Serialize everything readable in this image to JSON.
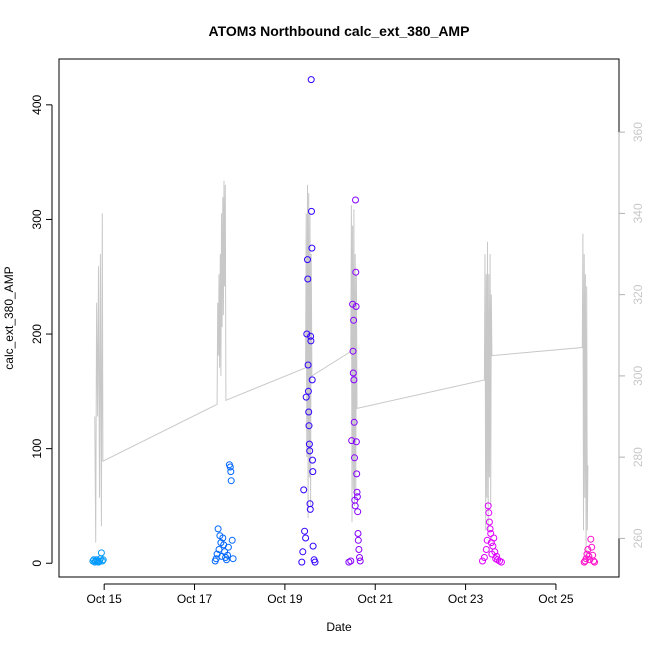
{
  "chart_data": {
    "type": "scatter",
    "title": "ATOM3 Northbound calc_ext_380_AMP",
    "xlabel": "Date",
    "ylabel": "calc_ext_380_AMP",
    "xlim": [
      "2023-10-14 00:00",
      "2023-10-26 09:30"
    ],
    "ylim": [
      -12,
      440
    ],
    "y2lim": [
      250.5,
      378
    ],
    "x_ticks": [
      {
        "date": "2023-10-15 00:00",
        "label": "Oct 15"
      },
      {
        "date": "2023-10-17 00:00",
        "label": "Oct 17"
      },
      {
        "date": "2023-10-19 00:00",
        "label": "Oct 19"
      },
      {
        "date": "2023-10-21 00:00",
        "label": "Oct 21"
      },
      {
        "date": "2023-10-23 00:00",
        "label": "Oct 23"
      },
      {
        "date": "2023-10-25 00:00",
        "label": "Oct 25"
      }
    ],
    "y_ticks": [
      0,
      100,
      200,
      300,
      400
    ],
    "y2_ticks": [
      260,
      280,
      300,
      320,
      340,
      360
    ],
    "colors": {
      "line": "#c8c8c8",
      "right_axis": "#c8c8c8",
      "series": [
        "#0099ff",
        "#0066ff",
        "#3300ff",
        "#8800ff",
        "#dd00ff",
        "#ff11cc"
      ]
    },
    "series": [
      {
        "day": "2023-10-14",
        "points": [
          [
            "2023-10-14 18:00",
            2
          ],
          [
            "2023-10-14 18:30",
            3
          ],
          [
            "2023-10-14 19:00",
            1
          ],
          [
            "2023-10-14 19:30",
            2
          ],
          [
            "2023-10-14 20:00",
            3
          ],
          [
            "2023-10-14 20:30",
            2
          ],
          [
            "2023-10-14 21:00",
            1
          ],
          [
            "2023-10-14 21:30",
            2
          ],
          [
            "2023-10-14 22:00",
            4
          ],
          [
            "2023-10-14 22:30",
            9
          ],
          [
            "2023-10-14 23:00",
            2
          ],
          [
            "2023-10-14 23:30",
            3
          ]
        ]
      },
      {
        "day": "2023-10-17",
        "points": [
          [
            "2023-10-17 11:00",
            2
          ],
          [
            "2023-10-17 11:30",
            4
          ],
          [
            "2023-10-17 12:00",
            8
          ],
          [
            "2023-10-17 12:30",
            30
          ],
          [
            "2023-10-17 13:00",
            12
          ],
          [
            "2023-10-17 13:30",
            24
          ],
          [
            "2023-10-17 14:00",
            18
          ],
          [
            "2023-10-17 14:30",
            6
          ],
          [
            "2023-10-17 15:00",
            22
          ],
          [
            "2023-10-17 15:30",
            16
          ],
          [
            "2023-10-17 16:00",
            10
          ],
          [
            "2023-10-17 16:30",
            5
          ],
          [
            "2023-10-17 17:00",
            3
          ],
          [
            "2023-10-17 17:30",
            7
          ],
          [
            "2023-10-17 18:00",
            14
          ],
          [
            "2023-10-17 18:30",
            86
          ],
          [
            "2023-10-17 19:00",
            84
          ],
          [
            "2023-10-17 19:15",
            80
          ],
          [
            "2023-10-17 19:30",
            72
          ],
          [
            "2023-10-17 20:00",
            20
          ],
          [
            "2023-10-17 20:30",
            4
          ]
        ]
      },
      {
        "day": "2023-10-19",
        "points": [
          [
            "2023-10-19 09:00",
            1
          ],
          [
            "2023-10-19 09:30",
            10
          ],
          [
            "2023-10-19 10:00",
            64
          ],
          [
            "2023-10-19 10:30",
            28
          ],
          [
            "2023-10-19 11:00",
            22
          ],
          [
            "2023-10-19 11:20",
            145
          ],
          [
            "2023-10-19 11:40",
            200
          ],
          [
            "2023-10-19 12:00",
            265
          ],
          [
            "2023-10-19 12:10",
            248
          ],
          [
            "2023-10-19 12:20",
            173
          ],
          [
            "2023-10-19 12:30",
            150
          ],
          [
            "2023-10-19 12:40",
            132
          ],
          [
            "2023-10-19 12:50",
            120
          ],
          [
            "2023-10-19 13:00",
            104
          ],
          [
            "2023-10-19 13:10",
            98
          ],
          [
            "2023-10-19 13:20",
            52
          ],
          [
            "2023-10-19 13:30",
            47
          ],
          [
            "2023-10-19 13:40",
            198
          ],
          [
            "2023-10-19 13:50",
            194
          ],
          [
            "2023-10-19 14:00",
            422
          ],
          [
            "2023-10-19 14:10",
            307
          ],
          [
            "2023-10-19 14:20",
            275
          ],
          [
            "2023-10-19 14:30",
            160
          ],
          [
            "2023-10-19 14:40",
            90
          ],
          [
            "2023-10-19 14:50",
            80
          ],
          [
            "2023-10-19 15:00",
            15
          ],
          [
            "2023-10-19 15:30",
            3
          ],
          [
            "2023-10-19 16:00",
            1
          ]
        ]
      },
      {
        "day": "2023-10-20",
        "points": [
          [
            "2023-10-20 10:00",
            1
          ],
          [
            "2023-10-20 11:00",
            2
          ],
          [
            "2023-10-20 11:30",
            107
          ],
          [
            "2023-10-20 12:00",
            226
          ],
          [
            "2023-10-20 12:10",
            185
          ],
          [
            "2023-10-20 12:20",
            166
          ],
          [
            "2023-10-20 12:30",
            212
          ],
          [
            "2023-10-20 12:40",
            160
          ],
          [
            "2023-10-20 12:50",
            123
          ],
          [
            "2023-10-20 13:00",
            92
          ],
          [
            "2023-10-20 13:10",
            55
          ],
          [
            "2023-10-20 13:20",
            50
          ],
          [
            "2023-10-20 13:30",
            317
          ],
          [
            "2023-10-20 13:40",
            254
          ],
          [
            "2023-10-20 13:50",
            224
          ],
          [
            "2023-10-20 14:00",
            106
          ],
          [
            "2023-10-20 14:10",
            78
          ],
          [
            "2023-10-20 14:20",
            62
          ],
          [
            "2023-10-20 14:30",
            58
          ],
          [
            "2023-10-20 14:40",
            45
          ],
          [
            "2023-10-20 14:50",
            26
          ],
          [
            "2023-10-20 15:00",
            20
          ],
          [
            "2023-10-20 15:20",
            12
          ],
          [
            "2023-10-20 15:40",
            5
          ],
          [
            "2023-10-20 16:00",
            2
          ]
        ]
      },
      {
        "day": "2023-10-23",
        "points": [
          [
            "2023-10-23 09:00",
            2
          ],
          [
            "2023-10-23 10:00",
            5
          ],
          [
            "2023-10-23 11:00",
            12
          ],
          [
            "2023-10-23 11:30",
            20
          ],
          [
            "2023-10-23 12:00",
            50
          ],
          [
            "2023-10-23 12:20",
            44
          ],
          [
            "2023-10-23 12:40",
            36
          ],
          [
            "2023-10-23 13:00",
            30
          ],
          [
            "2023-10-23 13:20",
            26
          ],
          [
            "2023-10-23 13:40",
            18
          ],
          [
            "2023-10-23 14:00",
            8
          ],
          [
            "2023-10-23 14:30",
            15
          ],
          [
            "2023-10-23 15:00",
            22
          ],
          [
            "2023-10-23 15:30",
            10
          ],
          [
            "2023-10-23 16:00",
            4
          ],
          [
            "2023-10-23 16:30",
            6
          ],
          [
            "2023-10-23 17:00",
            3
          ],
          [
            "2023-10-23 18:00",
            2
          ],
          [
            "2023-10-23 19:00",
            1
          ]
        ]
      },
      {
        "day": "2023-10-25",
        "points": [
          [
            "2023-10-25 15:00",
            1
          ],
          [
            "2023-10-25 15:30",
            2
          ],
          [
            "2023-10-25 16:00",
            4
          ],
          [
            "2023-10-25 16:30",
            8
          ],
          [
            "2023-10-25 17:00",
            12
          ],
          [
            "2023-10-25 17:30",
            6
          ],
          [
            "2023-10-25 18:00",
            3
          ],
          [
            "2023-10-25 18:30",
            21
          ],
          [
            "2023-10-25 19:00",
            14
          ],
          [
            "2023-10-25 19:30",
            7
          ],
          [
            "2023-10-25 20:00",
            2
          ],
          [
            "2023-10-25 20:30",
            1
          ]
        ]
      }
    ],
    "line": [
      [
        "2023-10-14 19:00",
        290
      ],
      [
        "2023-10-14 19:30",
        259
      ],
      [
        "2023-10-14 20:00",
        318
      ],
      [
        "2023-10-14 20:30",
        290
      ],
      [
        "2023-10-14 21:00",
        327
      ],
      [
        "2023-10-14 21:30",
        270
      ],
      [
        "2023-10-14 22:00",
        330
      ],
      [
        "2023-10-14 22:30",
        263
      ],
      [
        "2023-10-14 23:00",
        340
      ],
      [
        "2023-10-14 23:20",
        279
      ],
      [
        "2023-10-17 12:00",
        293
      ],
      [
        "2023-10-17 12:20",
        318
      ],
      [
        "2023-10-17 12:40",
        305
      ],
      [
        "2023-10-17 13:00",
        325
      ],
      [
        "2023-10-17 13:20",
        302
      ],
      [
        "2023-10-17 13:40",
        330
      ],
      [
        "2023-10-17 14:00",
        300
      ],
      [
        "2023-10-17 14:20",
        340
      ],
      [
        "2023-10-17 14:40",
        312
      ],
      [
        "2023-10-17 15:00",
        344
      ],
      [
        "2023-10-17 15:20",
        315
      ],
      [
        "2023-10-17 15:40",
        348
      ],
      [
        "2023-10-17 16:00",
        322
      ],
      [
        "2023-10-17 16:20",
        347
      ],
      [
        "2023-10-17 16:40",
        294
      ],
      [
        "2023-10-19 11:00",
        302
      ],
      [
        "2023-10-19 11:20",
        340
      ],
      [
        "2023-10-19 11:40",
        280
      ],
      [
        "2023-10-19 12:00",
        347
      ],
      [
        "2023-10-19 12:20",
        265
      ],
      [
        "2023-10-19 12:40",
        345
      ],
      [
        "2023-10-19 13:00",
        275
      ],
      [
        "2023-10-19 13:20",
        340
      ],
      [
        "2023-10-19 13:40",
        268
      ],
      [
        "2023-10-19 14:00",
        330
      ],
      [
        "2023-10-19 14:20",
        300
      ],
      [
        "2023-10-20 11:00",
        306
      ],
      [
        "2023-10-20 11:20",
        342
      ],
      [
        "2023-10-20 11:40",
        264
      ],
      [
        "2023-10-20 12:00",
        337
      ],
      [
        "2023-10-20 12:20",
        272
      ],
      [
        "2023-10-20 12:40",
        341
      ],
      [
        "2023-10-20 13:00",
        268
      ],
      [
        "2023-10-20 13:20",
        330
      ],
      [
        "2023-10-20 13:40",
        270
      ],
      [
        "2023-10-20 14:00",
        325
      ],
      [
        "2023-10-20 14:20",
        292
      ],
      [
        "2023-10-23 10:00",
        299
      ],
      [
        "2023-10-23 10:20",
        330
      ],
      [
        "2023-10-23 10:40",
        262
      ],
      [
        "2023-10-23 11:00",
        325
      ],
      [
        "2023-10-23 11:20",
        270
      ],
      [
        "2023-10-23 11:40",
        333
      ],
      [
        "2023-10-23 12:00",
        262
      ],
      [
        "2023-10-23 12:20",
        325
      ],
      [
        "2023-10-23 12:40",
        275
      ],
      [
        "2023-10-23 13:00",
        330
      ],
      [
        "2023-10-23 13:20",
        268
      ],
      [
        "2023-10-23 13:40",
        320
      ],
      [
        "2023-10-23 14:00",
        305
      ],
      [
        "2023-10-25 14:00",
        307
      ],
      [
        "2023-10-25 14:20",
        335
      ],
      [
        "2023-10-25 14:40",
        262
      ],
      [
        "2023-10-25 15:00",
        330
      ],
      [
        "2023-10-25 15:20",
        270
      ],
      [
        "2023-10-25 15:40",
        325
      ],
      [
        "2023-10-25 16:00",
        256
      ],
      [
        "2023-10-25 16:20",
        322
      ],
      [
        "2023-10-25 16:40",
        262
      ],
      [
        "2023-10-25 17:00",
        278
      ]
    ]
  }
}
